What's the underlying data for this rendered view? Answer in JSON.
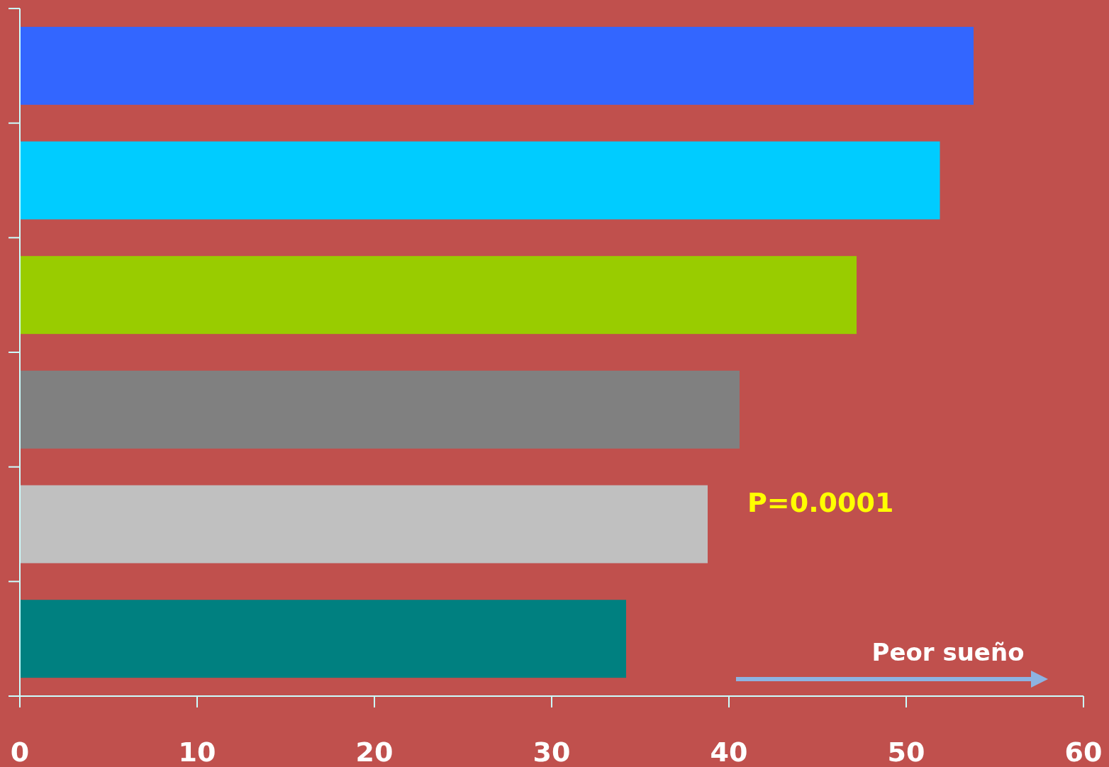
{
  "chart_data": {
    "type": "bar",
    "orientation": "horizontal",
    "categories": [
      null,
      null,
      null,
      null,
      null,
      null
    ],
    "values": [
      53.8,
      51.9,
      47.2,
      40.6,
      38.8,
      34.2
    ],
    "colors": [
      "#3366ff",
      "#00ccff",
      "#99cc00",
      "#808080",
      "#c0c0c0",
      "#008080"
    ],
    "xlim": [
      0,
      60
    ],
    "xticks": [
      0,
      10,
      20,
      30,
      40,
      50,
      60
    ],
    "annotations": [
      "P=0.0001",
      "Peor sueño"
    ]
  }
}
